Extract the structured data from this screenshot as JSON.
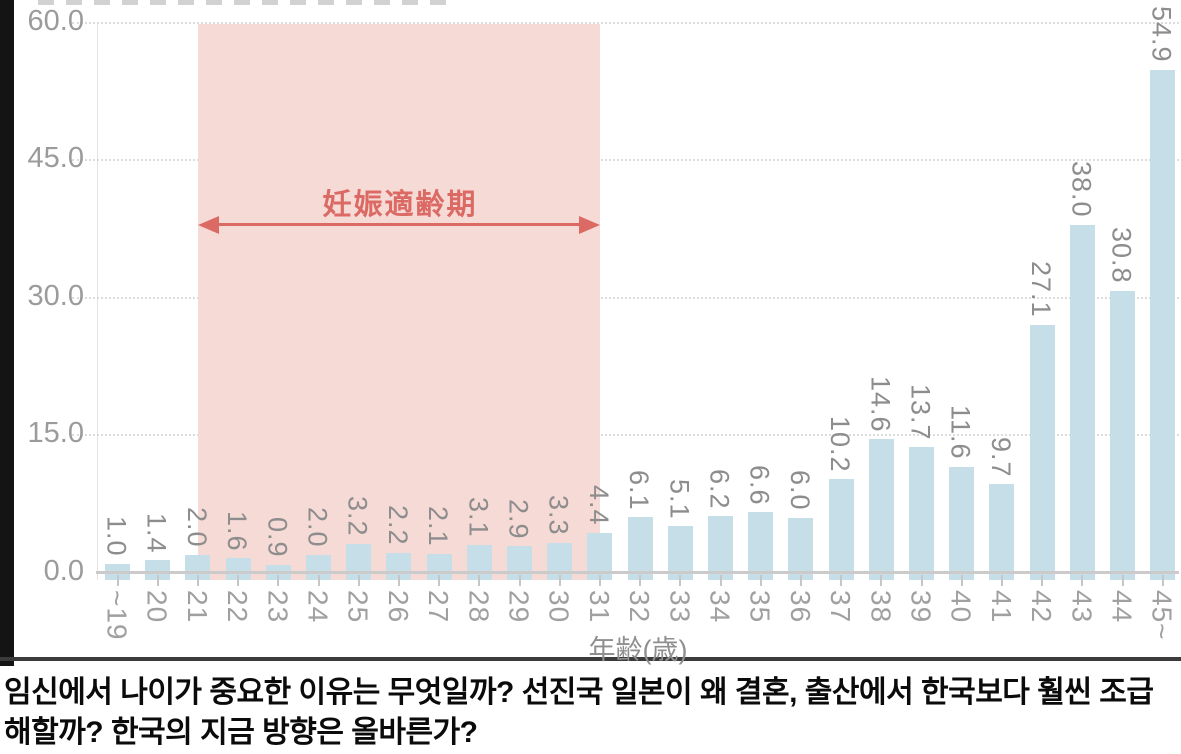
{
  "chart_data": {
    "type": "bar",
    "categories": [
      "~19",
      "20",
      "21",
      "22",
      "23",
      "24",
      "25",
      "26",
      "27",
      "28",
      "29",
      "30",
      "31",
      "32",
      "33",
      "34",
      "35",
      "36",
      "37",
      "38",
      "39",
      "40",
      "41",
      "42",
      "43",
      "44",
      "45~"
    ],
    "values": [
      1.0,
      1.4,
      2.0,
      1.6,
      0.9,
      2.0,
      3.2,
      2.2,
      2.1,
      3.1,
      2.9,
      3.3,
      4.4,
      6.1,
      5.1,
      6.2,
      6.6,
      6.0,
      10.2,
      14.6,
      13.7,
      11.6,
      9.7,
      27.1,
      38.0,
      30.8,
      54.9
    ],
    "value_labels": [
      "1.0",
      "1.4",
      "2.0",
      "1.6",
      "0.9",
      "2.0",
      "3.2",
      "2.2",
      "2.1",
      "3.1",
      "2.9",
      "3.3",
      "4.4",
      "6.1",
      "5.1",
      "6.2",
      "6.6",
      "6.0",
      "10.2",
      "14.6",
      "13.7",
      "11.6",
      "9.7",
      "27.1",
      "38.0",
      "30.8",
      "54.9"
    ],
    "xlabel": "年齢(歳)",
    "ylabel": "",
    "ylim": [
      0,
      60
    ],
    "y_ticks": [
      {
        "value": 60,
        "label": "60.0"
      },
      {
        "value": 45,
        "label": "45.0"
      },
      {
        "value": 30,
        "label": "30.0"
      },
      {
        "value": 15,
        "label": "15.0"
      },
      {
        "value": 0,
        "label": "0.0"
      }
    ],
    "grid": "horizontal-dotted",
    "legend": "none",
    "highlight_region": {
      "label": "妊娠適齢期",
      "from_category": "21",
      "to_category": "31",
      "style": "shaded pink band with double-headed arrow"
    },
    "colors": {
      "bar": "#c5dee7",
      "region": "#f6dad6",
      "accent": "#dc6a64",
      "axis_text": "#9b9b9b",
      "value_text": "#8d8d8d",
      "caption_text": "#0b0b0b"
    }
  },
  "caption": {
    "text": "임신에서 나이가 중요한 이유는 무엇일까? 선진국 일본이 왜 결혼, 출산에서 한국보다 훨씬 조급해할까? 한국의 지금 방향은 올바른가?"
  }
}
